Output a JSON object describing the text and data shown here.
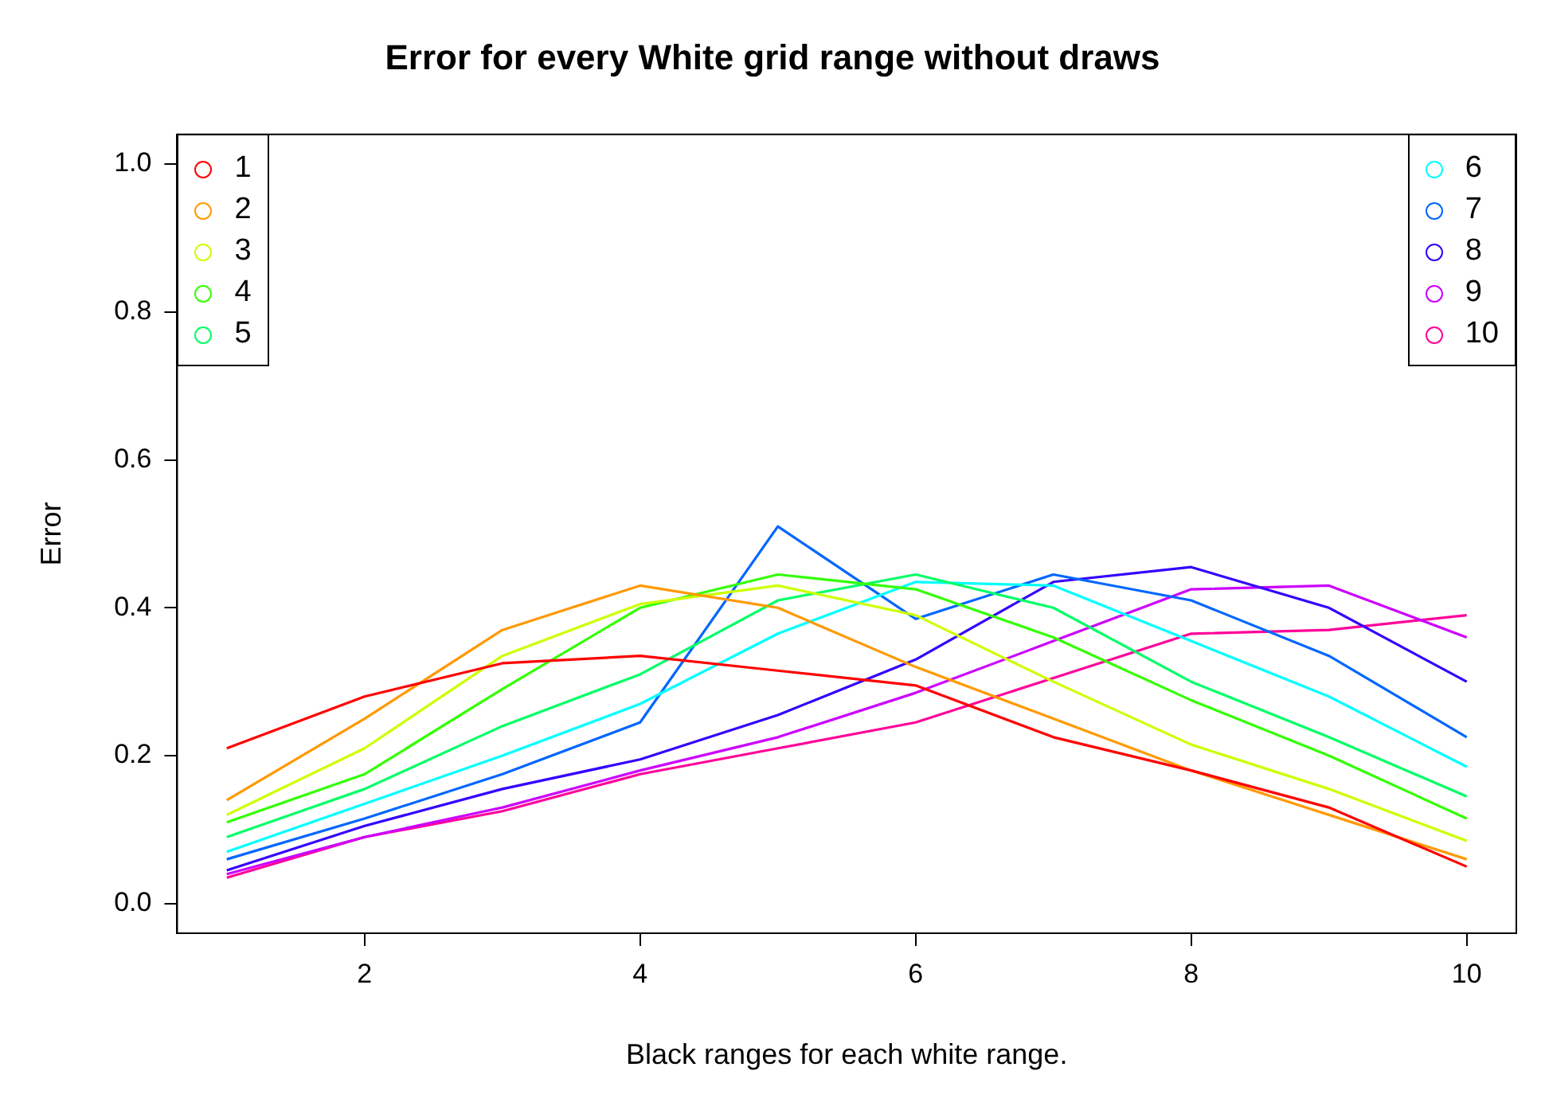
{
  "chart_data": {
    "type": "line",
    "title": "Error for every White grid range without draws",
    "xlabel": "Black ranges for each white range.",
    "ylabel": "Error",
    "x": [
      1,
      2,
      3,
      4,
      5,
      6,
      7,
      8,
      9,
      10
    ],
    "series": [
      {
        "name": "1",
        "color": "#ff0000",
        "values": [
          0.21,
          0.28,
          0.325,
          0.335,
          0.315,
          0.295,
          0.225,
          0.18,
          0.13,
          0.05
        ]
      },
      {
        "name": "2",
        "color": "#ff9900",
        "values": [
          0.14,
          0.25,
          0.37,
          0.43,
          0.4,
          0.32,
          0.25,
          0.18,
          0.12,
          0.06
        ]
      },
      {
        "name": "3",
        "color": "#ccff00",
        "values": [
          0.12,
          0.21,
          0.335,
          0.405,
          0.43,
          0.39,
          0.3,
          0.215,
          0.155,
          0.085
        ]
      },
      {
        "name": "4",
        "color": "#33ff00",
        "values": [
          0.11,
          0.175,
          0.29,
          0.4,
          0.445,
          0.425,
          0.36,
          0.275,
          0.2,
          0.115
        ]
      },
      {
        "name": "5",
        "color": "#00ff66",
        "values": [
          0.09,
          0.155,
          0.24,
          0.31,
          0.41,
          0.445,
          0.4,
          0.3,
          0.225,
          0.145
        ]
      },
      {
        "name": "6",
        "color": "#00ffff",
        "values": [
          0.07,
          0.135,
          0.2,
          0.27,
          0.365,
          0.435,
          0.43,
          0.355,
          0.28,
          0.185
        ]
      },
      {
        "name": "7",
        "color": "#0066ff",
        "values": [
          0.06,
          0.115,
          0.175,
          0.245,
          0.51,
          0.385,
          0.445,
          0.41,
          0.335,
          0.225
        ]
      },
      {
        "name": "8",
        "color": "#3300ff",
        "values": [
          0.045,
          0.105,
          0.155,
          0.195,
          0.255,
          0.33,
          0.435,
          0.455,
          0.4,
          0.3
        ]
      },
      {
        "name": "9",
        "color": "#cc00ff",
        "values": [
          0.04,
          0.09,
          0.13,
          0.18,
          0.225,
          0.285,
          0.355,
          0.425,
          0.43,
          0.36
        ]
      },
      {
        "name": "10",
        "color": "#ff0099",
        "values": [
          0.035,
          0.09,
          0.125,
          0.175,
          0.21,
          0.245,
          0.305,
          0.365,
          0.37,
          0.39
        ]
      }
    ],
    "xlim": [
      0.64,
      10.36
    ],
    "ylim": [
      -0.04,
      1.04
    ],
    "xticks": [
      2,
      4,
      6,
      8,
      10
    ],
    "yticks": [
      {
        "value": 0,
        "label": "0.0"
      },
      {
        "value": 0.2,
        "label": "0.2"
      },
      {
        "value": 0.4,
        "label": "0.4"
      },
      {
        "value": 0.6,
        "label": "0.6"
      },
      {
        "value": 0.8,
        "label": "0.8"
      },
      {
        "value": 1,
        "label": "1.0"
      }
    ],
    "grid": false,
    "legend": "top",
    "marker": "none",
    "line_style": "solid"
  }
}
